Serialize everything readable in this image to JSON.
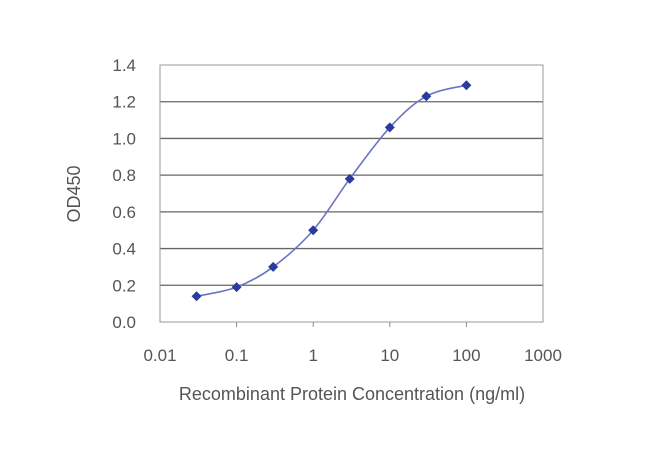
{
  "chart_data": {
    "type": "line",
    "title": "",
    "xlabel": "Recombinant Protein Concentration (ng/ml)",
    "ylabel": "OD450",
    "x_scale": "log",
    "xlim": [
      0.01,
      1000
    ],
    "ylim": [
      0,
      1.4
    ],
    "x_ticks": [
      "0.01",
      "0.1",
      "1",
      "10",
      "100",
      "1000"
    ],
    "y_ticks": [
      "0.0",
      "0.2",
      "0.4",
      "0.6",
      "0.8",
      "1.0",
      "1.2",
      "1.4"
    ],
    "grid": "horizontal",
    "series": [
      {
        "x": [
          0.03,
          0.1,
          0.3,
          1,
          3,
          10,
          30,
          100
        ],
        "y": [
          0.14,
          0.19,
          0.3,
          0.5,
          0.78,
          1.06,
          1.23,
          1.29
        ],
        "color": "#2b3a9e",
        "marker": "diamond",
        "smooth": true
      }
    ]
  }
}
